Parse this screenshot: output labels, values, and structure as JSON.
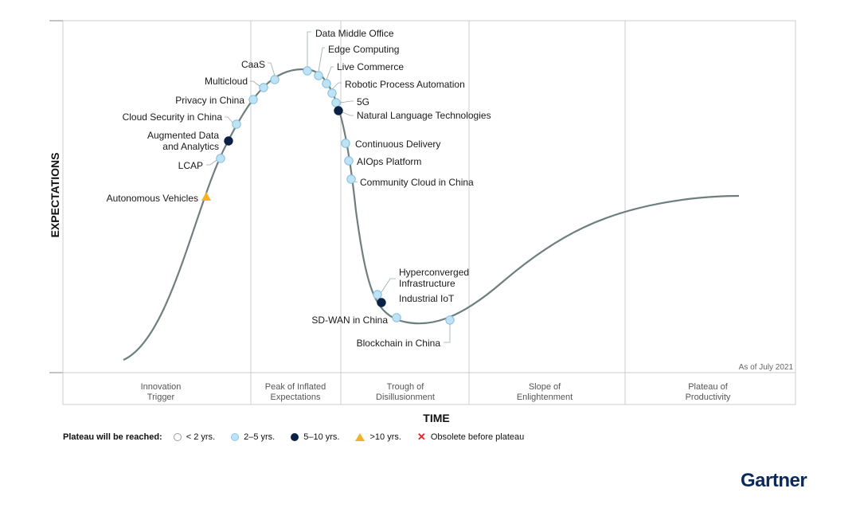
{
  "chart_data": {
    "type": "hype-cycle",
    "y_axis_label": "EXPECTATIONS",
    "x_axis_label": "TIME",
    "as_of": "As of July 2021",
    "phases": [
      [
        "Innovation",
        "Trigger"
      ],
      [
        "Peak of Inflated",
        "Expectations"
      ],
      [
        "Trough of",
        "Disillusionment"
      ],
      [
        "Slope of",
        "Enlightenment"
      ],
      [
        "Plateau of",
        "Productivity"
      ]
    ],
    "technologies": [
      {
        "name": "Data Middle Office",
        "phase": "Peak of Inflated Expectations",
        "plateau": "2-5"
      },
      {
        "name": "Edge Computing",
        "phase": "Peak of Inflated Expectations",
        "plateau": "2-5"
      },
      {
        "name": "Live Commerce",
        "phase": "Peak of Inflated Expectations",
        "plateau": "2-5"
      },
      {
        "name": "Robotic Process Automation",
        "phase": "Peak of Inflated Expectations",
        "plateau": "2-5"
      },
      {
        "name": "5G",
        "phase": "Peak of Inflated Expectations",
        "plateau": "2-5"
      },
      {
        "name": "Natural Language Technologies",
        "phase": "Peak of Inflated Expectations",
        "plateau": "5-10"
      },
      {
        "name": "CaaS",
        "phase": "Peak of Inflated Expectations",
        "plateau": "2-5"
      },
      {
        "name": "Multicloud",
        "phase": "Peak of Inflated Expectations",
        "plateau": "2-5"
      },
      {
        "name": "Privacy in China",
        "phase": "Peak of Inflated Expectations",
        "plateau": "2-5"
      },
      {
        "name": "Cloud Security in China",
        "phase": "Innovation Trigger",
        "plateau": "2-5"
      },
      {
        "name": "Augmented Data\nand Analytics",
        "phase": "Innovation Trigger",
        "plateau": "5-10"
      },
      {
        "name": "LCAP",
        "phase": "Innovation Trigger",
        "plateau": "2-5"
      },
      {
        "name": "Autonomous Vehicles",
        "phase": "Innovation Trigger",
        "plateau": ">10"
      },
      {
        "name": "Continuous Delivery",
        "phase": "Trough of Disillusionment",
        "plateau": "2-5"
      },
      {
        "name": "AIOps Platform",
        "phase": "Trough of Disillusionment",
        "plateau": "2-5"
      },
      {
        "name": "Community Cloud in China",
        "phase": "Trough of Disillusionment",
        "plateau": "2-5"
      },
      {
        "name": "Hyperconverged\nInfrastructure",
        "phase": "Trough of Disillusionment",
        "plateau": "2-5"
      },
      {
        "name": "Industrial IoT",
        "phase": "Trough of Disillusionment",
        "plateau": "5-10"
      },
      {
        "name": "SD-WAN in China",
        "phase": "Trough of Disillusionment",
        "plateau": "2-5"
      },
      {
        "name": "Blockchain in China",
        "phase": "Trough of Disillusionment",
        "plateau": "2-5"
      }
    ],
    "legend": {
      "title": "Plateau will be reached:",
      "items": [
        {
          "key": "<2",
          "label": "< 2 yrs.",
          "symbol": "hollow-circle",
          "color": "#ffffff"
        },
        {
          "key": "2-5",
          "label": "2–5 yrs.",
          "symbol": "circle",
          "color": "#bfe3f5"
        },
        {
          "key": "5-10",
          "label": "5–10 yrs.",
          "symbol": "circle",
          "color": "#0b2145"
        },
        {
          "key": ">10",
          "label": ">10 yrs.",
          "symbol": "triangle",
          "color": "#f0b323"
        },
        {
          "key": "obsolete",
          "label": "Obsolete before plateau",
          "symbol": "x",
          "color": "#e0262b"
        }
      ]
    }
  },
  "brand": "Gartner"
}
